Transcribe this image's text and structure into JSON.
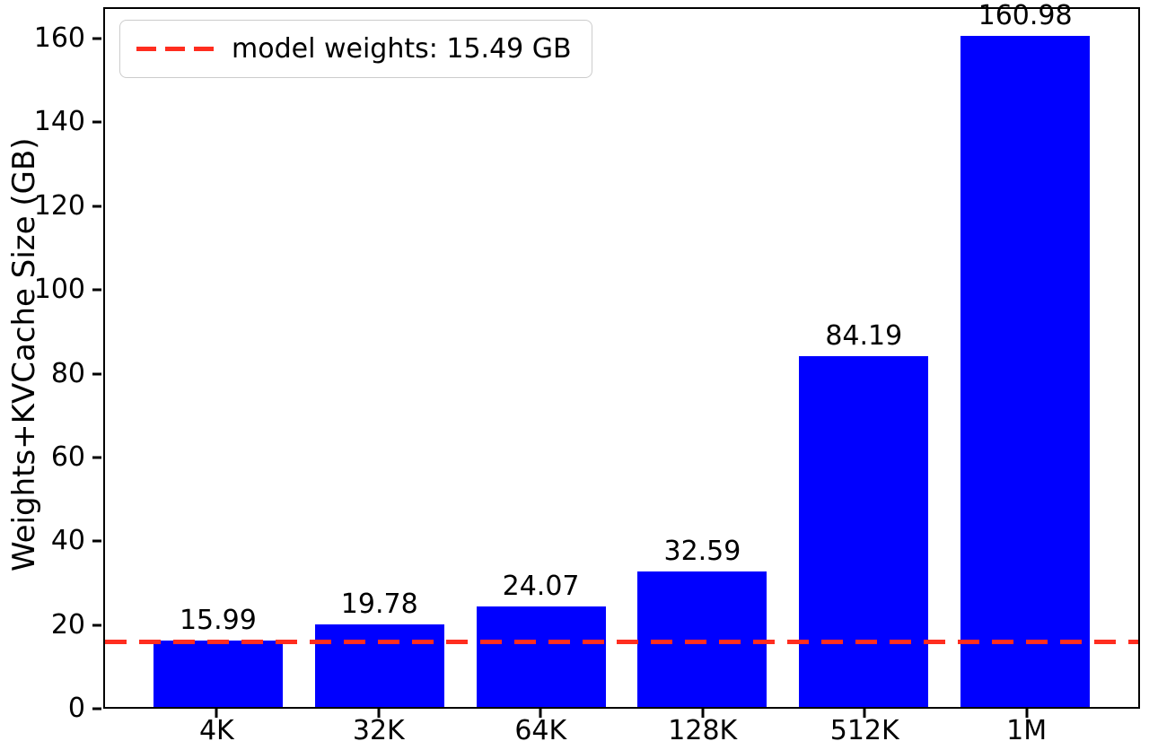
{
  "chart_data": {
    "type": "bar",
    "title": "",
    "xlabel": "",
    "ylabel": "Weights+KVCache Size (GB)",
    "categories": [
      "4K",
      "32K",
      "64K",
      "128K",
      "512K",
      "1M"
    ],
    "values": [
      15.99,
      19.78,
      24.07,
      32.59,
      84.19,
      160.98
    ],
    "bar_value_labels": [
      "15.99",
      "19.78",
      "24.07",
      "32.59",
      "84.19",
      "160.98"
    ],
    "ylim": [
      0,
      167.5
    ],
    "yticks": [
      0,
      20,
      40,
      60,
      80,
      100,
      120,
      140,
      160
    ],
    "grid": false,
    "bar_color": "#0000ff",
    "axis_color": "#000000",
    "ref_line": {
      "value": 15.49,
      "label": "model weights: 15.49 GB",
      "color": "#ff2d1f",
      "style": "dashed"
    },
    "legend_position": "upper left"
  }
}
